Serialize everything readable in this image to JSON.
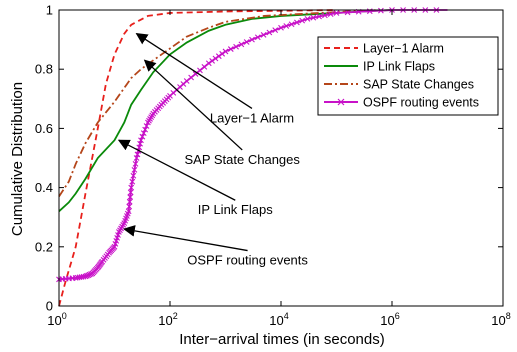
{
  "chart_data": {
    "type": "line",
    "xscale": "log",
    "xlabel": "Inter−arrival times (in seconds)",
    "ylabel": "Cumulative Distribution",
    "xlim": [
      1,
      100000000
    ],
    "ylim": [
      0,
      1
    ],
    "xticks": [
      {
        "value": 1,
        "base": "10",
        "exp": "0"
      },
      {
        "value": 100,
        "base": "10",
        "exp": "2"
      },
      {
        "value": 10000,
        "base": "10",
        "exp": "4"
      },
      {
        "value": 1000000,
        "base": "10",
        "exp": "6"
      },
      {
        "value": 100000000,
        "base": "10",
        "exp": "8"
      }
    ],
    "yticks": [
      {
        "value": 0,
        "label": "0"
      },
      {
        "value": 0.2,
        "label": "0.2"
      },
      {
        "value": 0.4,
        "label": "0.4"
      },
      {
        "value": 0.6,
        "label": "0.6"
      },
      {
        "value": 0.8,
        "label": "0.8"
      },
      {
        "value": 1,
        "label": "1"
      }
    ],
    "grid": false,
    "legend_position": "top-right",
    "series": [
      {
        "name": "Layer−1 Alarm",
        "color": "#e8201c",
        "dash": "6,4",
        "marker": "none",
        "points": [
          [
            1,
            0
          ],
          [
            1.3,
            0.08
          ],
          [
            2,
            0.2
          ],
          [
            3,
            0.38
          ],
          [
            5,
            0.6
          ],
          [
            7,
            0.75
          ],
          [
            10,
            0.85
          ],
          [
            15,
            0.92
          ],
          [
            20,
            0.95
          ],
          [
            40,
            0.98
          ],
          [
            100,
            0.99
          ],
          [
            1000,
            0.995
          ],
          [
            100000,
            1
          ]
        ]
      },
      {
        "name": "IP Link Flaps",
        "color": "#0a8a0a",
        "dash": "",
        "marker": "none",
        "points": [
          [
            1,
            0.32
          ],
          [
            1.5,
            0.35
          ],
          [
            2,
            0.38
          ],
          [
            3,
            0.43
          ],
          [
            5,
            0.5
          ],
          [
            10,
            0.56
          ],
          [
            15,
            0.62
          ],
          [
            20,
            0.68
          ],
          [
            30,
            0.73
          ],
          [
            50,
            0.79
          ],
          [
            100,
            0.85
          ],
          [
            200,
            0.89
          ],
          [
            500,
            0.93
          ],
          [
            1000,
            0.95
          ],
          [
            3000,
            0.97
          ],
          [
            10000,
            0.98
          ],
          [
            100000,
            0.99
          ],
          [
            1000000,
            1
          ]
        ]
      },
      {
        "name": "SAP State Changes",
        "color": "#b5461a",
        "dash": "8,3,2,3",
        "marker": "none",
        "points": [
          [
            1,
            0.37
          ],
          [
            1.5,
            0.42
          ],
          [
            2,
            0.48
          ],
          [
            3,
            0.55
          ],
          [
            5,
            0.62
          ],
          [
            10,
            0.69
          ],
          [
            20,
            0.77
          ],
          [
            30,
            0.8
          ],
          [
            50,
            0.83
          ],
          [
            100,
            0.87
          ],
          [
            200,
            0.91
          ],
          [
            500,
            0.94
          ],
          [
            1000,
            0.96
          ],
          [
            5000,
            0.98
          ],
          [
            50000,
            0.99
          ],
          [
            500000,
            1
          ]
        ]
      },
      {
        "name": "OSPF routing events",
        "color": "#c812c8",
        "dash": "",
        "marker": "x",
        "points": [
          [
            1,
            0.09
          ],
          [
            2,
            0.095
          ],
          [
            3,
            0.1
          ],
          [
            4,
            0.11
          ],
          [
            5,
            0.13
          ],
          [
            6,
            0.15
          ],
          [
            8,
            0.18
          ],
          [
            10,
            0.2
          ],
          [
            12,
            0.25
          ],
          [
            15,
            0.28
          ],
          [
            18,
            0.32
          ],
          [
            20,
            0.4
          ],
          [
            25,
            0.5
          ],
          [
            30,
            0.56
          ],
          [
            40,
            0.62
          ],
          [
            50,
            0.65
          ],
          [
            70,
            0.68
          ],
          [
            100,
            0.71
          ],
          [
            200,
            0.76
          ],
          [
            500,
            0.82
          ],
          [
            1000,
            0.86
          ],
          [
            3000,
            0.9
          ],
          [
            10000,
            0.94
          ],
          [
            30000,
            0.97
          ],
          [
            100000,
            0.99
          ],
          [
            1000000,
            1
          ],
          [
            10000000,
            1
          ]
        ]
      }
    ],
    "annotations": [
      {
        "text": "Layer−1 Alarm",
        "x": 3000,
        "y": 0.62,
        "target_x": 25,
        "target_y": 0.92
      },
      {
        "text": "SAP State Changes",
        "x": 2000,
        "y": 0.48,
        "target_x": 35,
        "target_y": 0.83
      },
      {
        "text": "IP Link Flaps",
        "x": 1500,
        "y": 0.31,
        "target_x": 12,
        "target_y": 0.56
      },
      {
        "text": "OSPF routing events",
        "x": 2500,
        "y": 0.14,
        "target_x": 15,
        "target_y": 0.26
      }
    ]
  }
}
